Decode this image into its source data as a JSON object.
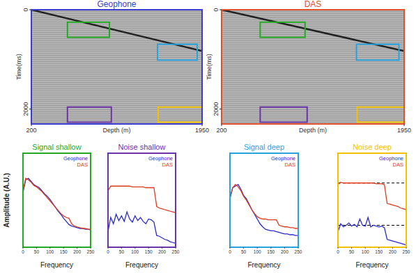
{
  "chart_data": [
    {
      "type": "seismic",
      "title": "Geophone",
      "color": "#3b3bd0",
      "xlabel": "Depth (m)",
      "ylabel": "Time(ms)",
      "xlim": [
        200,
        1950
      ],
      "ylim": [
        2300,
        0
      ],
      "xticks": [
        200,
        1950
      ],
      "yticks": [
        0,
        2000
      ],
      "x": [
        200,
        1950
      ],
      "series": [
        {
          "color": "#222222",
          "values": [
            0,
            830
          ]
        }
      ],
      "regions": [
        {
          "color": "#22aa22",
          "x": [
            570,
            1000
          ],
          "y": [
            250,
            555
          ]
        },
        {
          "color": "#29a3e0",
          "x": [
            1493,
            1900
          ],
          "y": [
            695,
            1014
          ]
        },
        {
          "color": "#6a35a8",
          "x": [
            570,
            1020
          ],
          "y": [
            1960,
            2264
          ]
        },
        {
          "color": "#f2c200",
          "x": [
            1500,
            1950
          ],
          "y": [
            1960,
            2264
          ]
        }
      ]
    },
    {
      "type": "seismic",
      "title": "DAS",
      "color": "#e0502a",
      "xlabel": "Depth (m)",
      "ylabel": "Time(ms)",
      "xlim": [
        200,
        1950
      ],
      "ylim": [
        2300,
        0
      ],
      "xticks": [
        200,
        1950
      ],
      "yticks": [
        0,
        2000
      ],
      "x": [
        200,
        1950
      ],
      "series": [
        {
          "color": "#222222",
          "values": [
            0,
            830
          ]
        }
      ],
      "regions": [
        {
          "color": "#22aa22",
          "x": [
            570,
            1000
          ],
          "y": [
            250,
            555
          ]
        },
        {
          "color": "#29a3e0",
          "x": [
            1493,
            1900
          ],
          "y": [
            695,
            1014
          ]
        },
        {
          "color": "#6a35a8",
          "x": [
            570,
            1020
          ],
          "y": [
            1960,
            2264
          ]
        },
        {
          "color": "#f2c200",
          "x": [
            1500,
            1950
          ],
          "y": [
            1960,
            2264
          ]
        }
      ]
    },
    {
      "type": "line",
      "title": "Signal shallow",
      "color": "#22aa22",
      "xlabel": "Frequency",
      "ylabel": "Amplitude (A.U.)",
      "xlim": [
        0,
        250
      ],
      "ylim": [
        0,
        1.2
      ],
      "xticks": [
        0,
        50,
        100,
        150,
        200,
        250
      ],
      "tick_labels": "x",
      "legend": "upper right",
      "x": [
        0,
        10,
        20,
        30,
        40,
        50,
        60,
        70,
        80,
        90,
        100,
        110,
        120,
        130,
        140,
        150,
        160,
        170,
        180,
        190,
        200,
        210,
        220,
        230,
        240,
        250
      ],
      "series": [
        {
          "name": "Geophone",
          "color": "#2a2ad0",
          "values": [
            0.7,
            0.86,
            0.88,
            0.84,
            0.8,
            0.78,
            0.76,
            0.72,
            0.68,
            0.65,
            0.61,
            0.56,
            0.51,
            0.46,
            0.42,
            0.37,
            0.33,
            0.29,
            0.27,
            0.26,
            0.25,
            0.24,
            0.24,
            0.23,
            0.23,
            0.22
          ]
        },
        {
          "name": "DAS",
          "color": "#e03a1a",
          "values": [
            0.72,
            0.88,
            0.86,
            0.83,
            0.79,
            0.77,
            0.74,
            0.71,
            0.67,
            0.63,
            0.59,
            0.55,
            0.51,
            0.47,
            0.43,
            0.4,
            0.38,
            0.37,
            0.3,
            0.27,
            0.26,
            0.25,
            0.24,
            0.24,
            0.23,
            0.23
          ]
        }
      ]
    },
    {
      "type": "line",
      "title": "Noise shallow",
      "color": "#6a35a8",
      "xlabel": "Frequency",
      "xlim": [
        0,
        250
      ],
      "ylim": [
        0,
        1.2
      ],
      "xticks": [
        0,
        50,
        100,
        150,
        200,
        250
      ],
      "tick_labels": "x",
      "legend": "upper right",
      "x": [
        0,
        10,
        20,
        30,
        40,
        50,
        60,
        70,
        80,
        90,
        100,
        110,
        120,
        130,
        140,
        150,
        160,
        170,
        180,
        190,
        200,
        210,
        220,
        230,
        240,
        250
      ],
      "series": [
        {
          "name": "Geophone",
          "color": "#2a2ad0",
          "values": [
            0.2,
            0.38,
            0.3,
            0.42,
            0.34,
            0.4,
            0.33,
            0.45,
            0.36,
            0.32,
            0.4,
            0.34,
            0.38,
            0.33,
            0.3,
            0.36,
            0.35,
            0.32,
            0.15,
            0.14,
            0.12,
            0.1,
            0.09,
            0.07,
            0.06,
            0.05
          ]
        },
        {
          "name": "DAS",
          "color": "#e03a1a",
          "values": [
            0.72,
            0.78,
            0.78,
            0.78,
            0.78,
            0.78,
            0.78,
            0.78,
            0.78,
            0.77,
            0.77,
            0.77,
            0.77,
            0.77,
            0.76,
            0.76,
            0.76,
            0.76,
            0.52,
            0.5,
            0.49,
            0.48,
            0.47,
            0.46,
            0.45,
            0.44
          ]
        }
      ]
    },
    {
      "type": "line",
      "title": "Signal deep",
      "color": "#29a3e0",
      "xlabel": "Frequency",
      "xlim": [
        0,
        250
      ],
      "ylim": [
        0,
        1.2
      ],
      "xticks": [
        0,
        50,
        100,
        150,
        200,
        250
      ],
      "tick_labels": "x",
      "legend": "upper right",
      "x": [
        0,
        10,
        20,
        30,
        40,
        50,
        60,
        70,
        80,
        90,
        100,
        110,
        120,
        130,
        140,
        150,
        160,
        170,
        180,
        190,
        200,
        210,
        220,
        230,
        240,
        250
      ],
      "series": [
        {
          "name": "Geophone",
          "color": "#2a2ad0",
          "values": [
            0.62,
            0.76,
            0.78,
            0.8,
            0.74,
            0.66,
            0.62,
            0.55,
            0.48,
            0.42,
            0.36,
            0.3,
            0.26,
            0.23,
            0.22,
            0.21,
            0.21,
            0.2,
            0.19,
            0.18,
            0.17,
            0.17,
            0.16,
            0.16,
            0.15,
            0.15
          ]
        },
        {
          "name": "DAS",
          "color": "#e03a1a",
          "values": [
            0.64,
            0.76,
            0.8,
            0.77,
            0.72,
            0.65,
            0.6,
            0.54,
            0.48,
            0.43,
            0.39,
            0.37,
            0.36,
            0.36,
            0.35,
            0.35,
            0.35,
            0.35,
            0.28,
            0.27,
            0.26,
            0.26,
            0.25,
            0.25,
            0.24,
            0.24
          ]
        }
      ]
    },
    {
      "type": "line",
      "title": "Noise deep",
      "color": "#f2c200",
      "xlabel": "Frequency",
      "xlim": [
        0,
        250
      ],
      "ylim": [
        0,
        1.2
      ],
      "xticks": [
        0,
        50,
        100,
        150,
        200,
        250
      ],
      "tick_labels": "x",
      "legend": "upper right",
      "x": [
        0,
        10,
        20,
        30,
        40,
        50,
        60,
        70,
        80,
        90,
        100,
        110,
        120,
        130,
        140,
        150,
        160,
        170,
        180,
        190,
        200,
        210,
        220,
        230,
        240,
        250
      ],
      "reference_lines": [
        0.82,
        0.28
      ],
      "series": [
        {
          "name": "Geophone",
          "color": "#2a2ad0",
          "values": [
            0.2,
            0.3,
            0.26,
            0.28,
            0.31,
            0.27,
            0.29,
            0.26,
            0.36,
            0.28,
            0.27,
            0.38,
            0.26,
            0.28,
            0.27,
            0.26,
            0.27,
            0.25,
            0.1,
            0.09,
            0.08,
            0.07,
            0.06,
            0.05,
            0.04,
            0.03
          ]
        },
        {
          "name": "DAS",
          "color": "#e03a1a",
          "values": [
            0.8,
            0.83,
            0.82,
            0.82,
            0.82,
            0.82,
            0.82,
            0.82,
            0.82,
            0.82,
            0.82,
            0.82,
            0.82,
            0.82,
            0.81,
            0.81,
            0.81,
            0.8,
            0.56,
            0.55,
            0.54,
            0.53,
            0.52,
            0.5,
            0.49,
            0.48
          ]
        }
      ]
    }
  ]
}
